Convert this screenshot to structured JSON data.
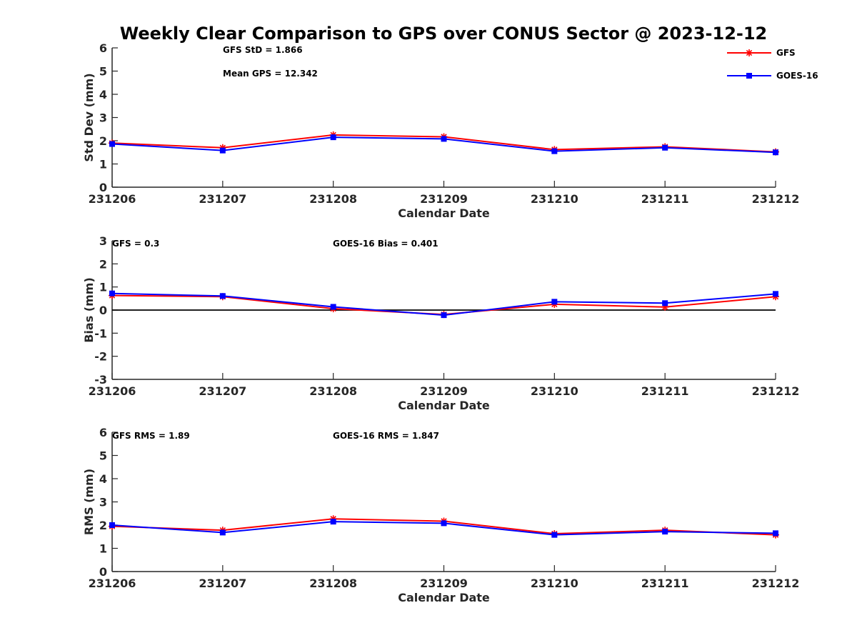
{
  "title": "Weekly Clear Comparison to GPS over CONUS Sector @ 2023-12-12",
  "legend": [
    {
      "name": "GFS",
      "color": "#ff0000",
      "marker": "asterisk"
    },
    {
      "name": "GOES-16",
      "color": "#0000ff",
      "marker": "square"
    }
  ],
  "chart_data": [
    {
      "type": "line",
      "categories": [
        "231206",
        "231207",
        "231208",
        "231209",
        "231210",
        "231211",
        "231212"
      ],
      "xlabel": "Calendar Date",
      "ylabel": "Std Dev (mm)",
      "ylim": [
        0,
        6
      ],
      "yticks": [
        "0",
        "1",
        "2",
        "3",
        "4",
        "5",
        "6"
      ],
      "grid": false,
      "legend": "top-right",
      "annotations": [
        "GFS StD = 1.866",
        "Mean GPS = 12.342"
      ],
      "series": [
        {
          "name": "GFS",
          "color": "#ff0000",
          "values": [
            1.9,
            1.7,
            2.25,
            2.17,
            1.62,
            1.74,
            1.52
          ]
        },
        {
          "name": "GOES-16",
          "color": "#0000ff",
          "values": [
            1.86,
            1.58,
            2.15,
            2.08,
            1.55,
            1.7,
            1.5
          ]
        }
      ]
    },
    {
      "type": "line",
      "categories": [
        "231206",
        "231207",
        "231208",
        "231209",
        "231210",
        "231211",
        "231212"
      ],
      "xlabel": "Calendar Date",
      "ylabel": "Bias (mm)",
      "ylim": [
        -3,
        3
      ],
      "yticks": [
        "-3",
        "-2",
        "-1",
        "0",
        "1",
        "2",
        "3"
      ],
      "zero_line": true,
      "grid": false,
      "annotations": [
        "GFS = 0.3",
        "GOES-16 Bias  = 0.401"
      ],
      "series": [
        {
          "name": "GFS",
          "color": "#ff0000",
          "values": [
            0.63,
            0.58,
            0.06,
            -0.19,
            0.25,
            0.13,
            0.58
          ]
        },
        {
          "name": "GOES-16",
          "color": "#0000ff",
          "values": [
            0.72,
            0.61,
            0.14,
            -0.22,
            0.36,
            0.3,
            0.7
          ]
        }
      ]
    },
    {
      "type": "line",
      "categories": [
        "231206",
        "231207",
        "231208",
        "231209",
        "231210",
        "231211",
        "231212"
      ],
      "xlabel": "Calendar Date",
      "ylabel": "RMS (mm)",
      "ylim": [
        0,
        6
      ],
      "yticks": [
        "0",
        "1",
        "2",
        "3",
        "4",
        "5",
        "6"
      ],
      "grid": false,
      "annotations": [
        "GFS RMS = 1.89",
        "GOES-16 RMS = 1.847"
      ],
      "series": [
        {
          "name": "GFS",
          "color": "#ff0000",
          "values": [
            1.95,
            1.78,
            2.27,
            2.17,
            1.63,
            1.78,
            1.58
          ]
        },
        {
          "name": "GOES-16",
          "color": "#0000ff",
          "values": [
            2.0,
            1.68,
            2.15,
            2.08,
            1.58,
            1.72,
            1.65
          ]
        }
      ]
    }
  ]
}
